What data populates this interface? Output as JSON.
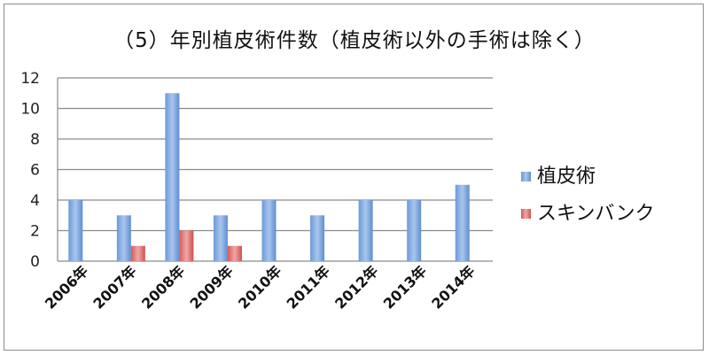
{
  "chart_data": {
    "type": "bar",
    "title": "（5）年別植皮術件数（植皮術以外の手術は除く）",
    "categories": [
      "2006年",
      "2007年",
      "2008年",
      "2009年",
      "2010年",
      "2011年",
      "2012年",
      "2013年",
      "2014年"
    ],
    "series": [
      {
        "name": "植皮術",
        "values": [
          4,
          3,
          11,
          3,
          4,
          3,
          4,
          4,
          5
        ],
        "color": "#4f81bd"
      },
      {
        "name": "スキンバンク",
        "values": [
          0,
          1,
          2,
          1,
          0,
          0,
          0,
          0,
          0
        ],
        "color": "#c0504d"
      }
    ],
    "ylim": [
      0,
      12
    ],
    "yticks": [
      0,
      2,
      4,
      6,
      8,
      10,
      12
    ],
    "grid": true,
    "legend_position": "right"
  }
}
